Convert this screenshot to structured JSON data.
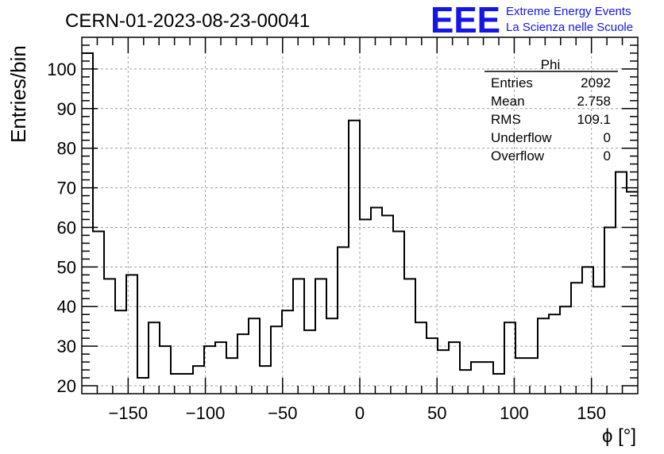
{
  "header": {
    "run_title": "CERN-01-2023-08-23-00041",
    "logo_text": "EEE",
    "logo_line1": "Extreme Energy Events",
    "logo_line2": "La Scienza nelle Scuole",
    "logo_color": "#1515e8"
  },
  "stats": {
    "name": "Phi",
    "rows": [
      {
        "label": "Entries",
        "value": "2092"
      },
      {
        "label": "Mean",
        "value": "2.758"
      },
      {
        "label": "RMS",
        "value": "109.1"
      },
      {
        "label": "Underflow",
        "value": "0"
      },
      {
        "label": "Overflow",
        "value": "0"
      }
    ]
  },
  "chart_data": {
    "type": "histogram",
    "xlabel": "ϕ [°]",
    "ylabel": "Entries/bin",
    "xlim": [
      -180,
      180
    ],
    "ylim": [
      18,
      108
    ],
    "bin_width": 7.2,
    "bin_low_edge": -180,
    "values": [
      104,
      59,
      47,
      39,
      48,
      22,
      36,
      30,
      23,
      23,
      25,
      30,
      31,
      27,
      33,
      37,
      25,
      35,
      39,
      47,
      34,
      47,
      37,
      55,
      87,
      62,
      65,
      63,
      59,
      47,
      36,
      32,
      29,
      31,
      24,
      26,
      26,
      23,
      36,
      27,
      27,
      37,
      38,
      40,
      46,
      50,
      45,
      60,
      74,
      69
    ],
    "xticks_major": [
      -150,
      -100,
      -50,
      0,
      50,
      100,
      150
    ],
    "xtick_labels": [
      "−150",
      "−100",
      "−50",
      "0",
      "50",
      "100",
      "150"
    ],
    "yticks_major": [
      20,
      30,
      40,
      50,
      60,
      70,
      80,
      90,
      100
    ],
    "ytick_labels": [
      "20",
      "30",
      "40",
      "50",
      "60",
      "70",
      "80",
      "90",
      "100"
    ],
    "grid": true,
    "line_color": "#000000",
    "grid_color": "#a0a0a0"
  }
}
